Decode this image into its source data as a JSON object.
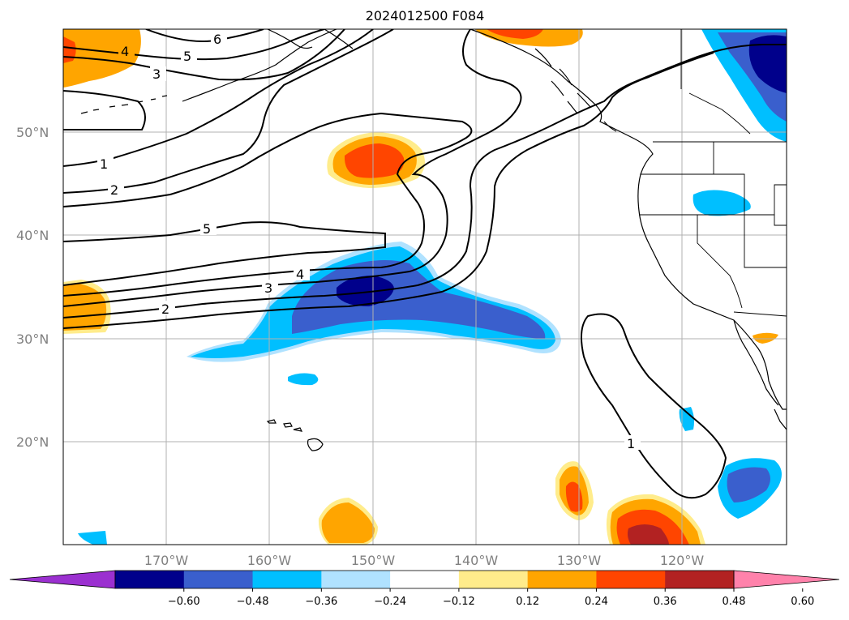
{
  "title": "2024012500 F084",
  "map": {
    "lat_labels": [
      "50°N",
      "40°N",
      "30°N",
      "20°N"
    ],
    "lon_labels": [
      "170°W",
      "160°W",
      "150°W",
      "140°W",
      "130°W",
      "120°W"
    ],
    "contour_labels": [
      "6",
      "5",
      "4",
      "3",
      "1",
      "2",
      "5",
      "4",
      "3",
      "2",
      "1"
    ]
  },
  "colorbar": {
    "tick_labels": [
      "−0.60",
      "−0.48",
      "−0.36",
      "−0.24",
      "−0.12",
      "0.12",
      "0.24",
      "0.36",
      "0.48",
      "0.60"
    ],
    "colors": [
      "#9b30d0",
      "#00008b",
      "#3a5fcd",
      "#00bfff",
      "#b0e2ff",
      "#ffffff",
      "#ffec8b",
      "#ffa500",
      "#ff4500",
      "#b22222",
      "#ff82ab"
    ]
  }
}
